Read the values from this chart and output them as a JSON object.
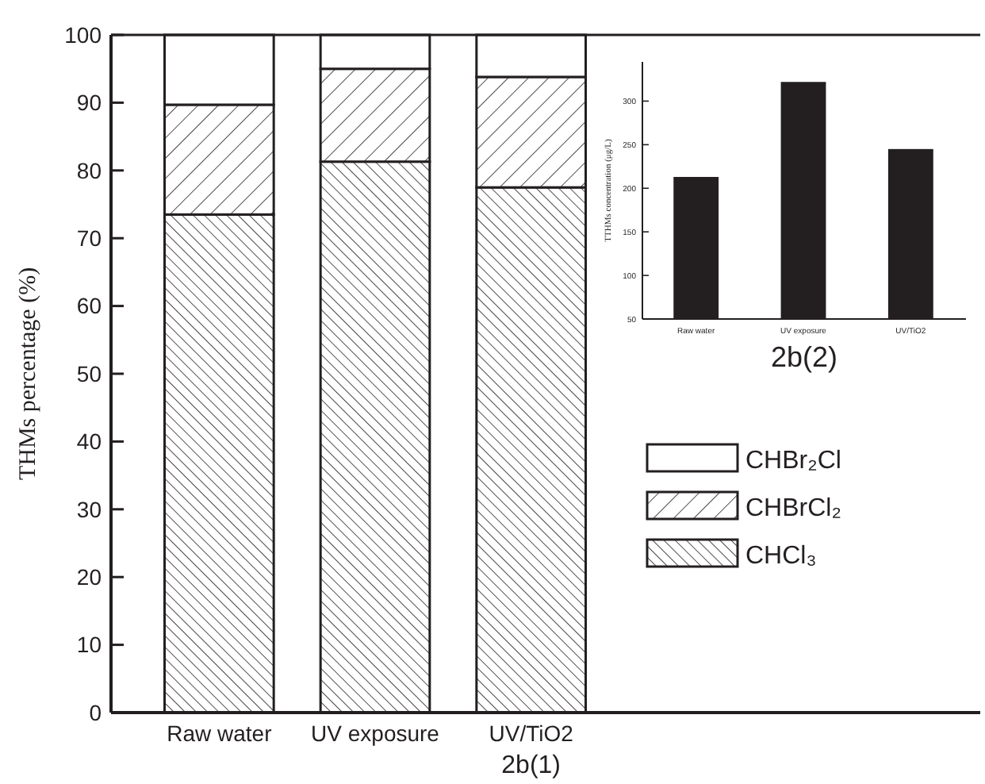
{
  "chart_data": [
    {
      "type": "bar",
      "stacked": true,
      "xlabel": "2b(1)",
      "ylabel": "THMs percentage (%)",
      "categories": [
        "Raw water",
        "UV exposure",
        "UV/TiO2"
      ],
      "series": [
        {
          "name": "CHCl₃",
          "color": "#ffffff",
          "values": [
            73.5,
            81.3,
            77.5
          ]
        },
        {
          "name": "CHBrCl₂",
          "color": "#ffffff",
          "values": [
            16.2,
            13.7,
            16.3
          ]
        },
        {
          "name": "CHBr₂Cl",
          "color": "#ffffff",
          "values": [
            10.3,
            5,
            6.2
          ]
        }
      ],
      "ylim": [
        0,
        100
      ],
      "yticks": [
        0,
        10,
        20,
        30,
        40,
        50,
        60,
        70,
        80,
        90,
        100
      ],
      "grid": false,
      "legend": "right"
    },
    {
      "type": "bar",
      "xlabel": "2b(2)",
      "ylabel": "TTHMs concentration (μg/L)",
      "categories": [
        "Raw water",
        "UV exposure",
        "UV/TiO2"
      ],
      "values": [
        213,
        322,
        245
      ],
      "color": "#231f20",
      "ylim": [
        50,
        345
      ],
      "yticks": [
        50,
        100,
        150,
        200,
        250,
        300
      ],
      "grid": false
    }
  ]
}
